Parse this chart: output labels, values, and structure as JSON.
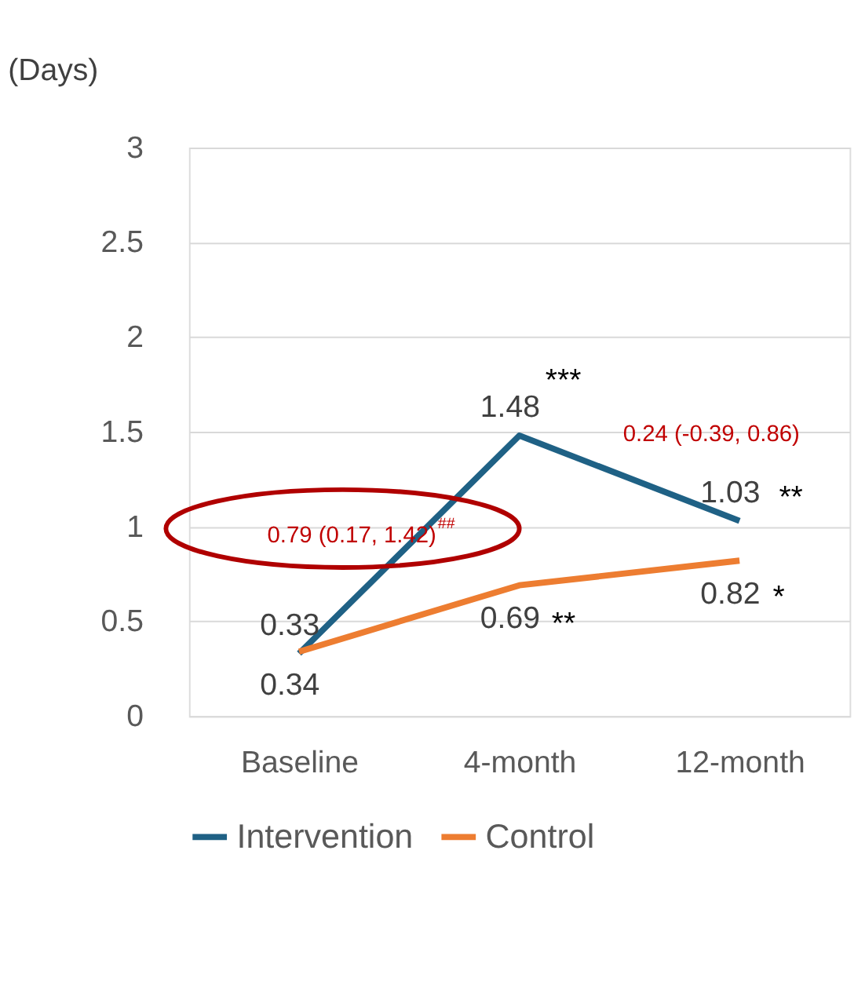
{
  "chart_data": {
    "type": "line",
    "ylabel": "(Days)",
    "categories": [
      "Baseline",
      "4-month",
      "12-month"
    ],
    "series": [
      {
        "name": "Intervention",
        "color": "#1f6185",
        "values": [
          0.33,
          1.48,
          1.03
        ]
      },
      {
        "name": "Control",
        "color": "#ed7d31",
        "values": [
          0.34,
          0.69,
          0.82
        ]
      }
    ],
    "ylim": [
      0,
      3
    ],
    "yticks": [
      0,
      0.5,
      1,
      1.5,
      2,
      2.5,
      3
    ],
    "grid": "y",
    "legend": "bottom",
    "data_labels": true,
    "marker": "none",
    "line_style": "solid",
    "annotations": [
      "0.79 (0.17, 1.42)$^{##}$",
      "0.24 (-0.39, 0.86)",
      "***",
      "**",
      "**",
      "*"
    ]
  }
}
